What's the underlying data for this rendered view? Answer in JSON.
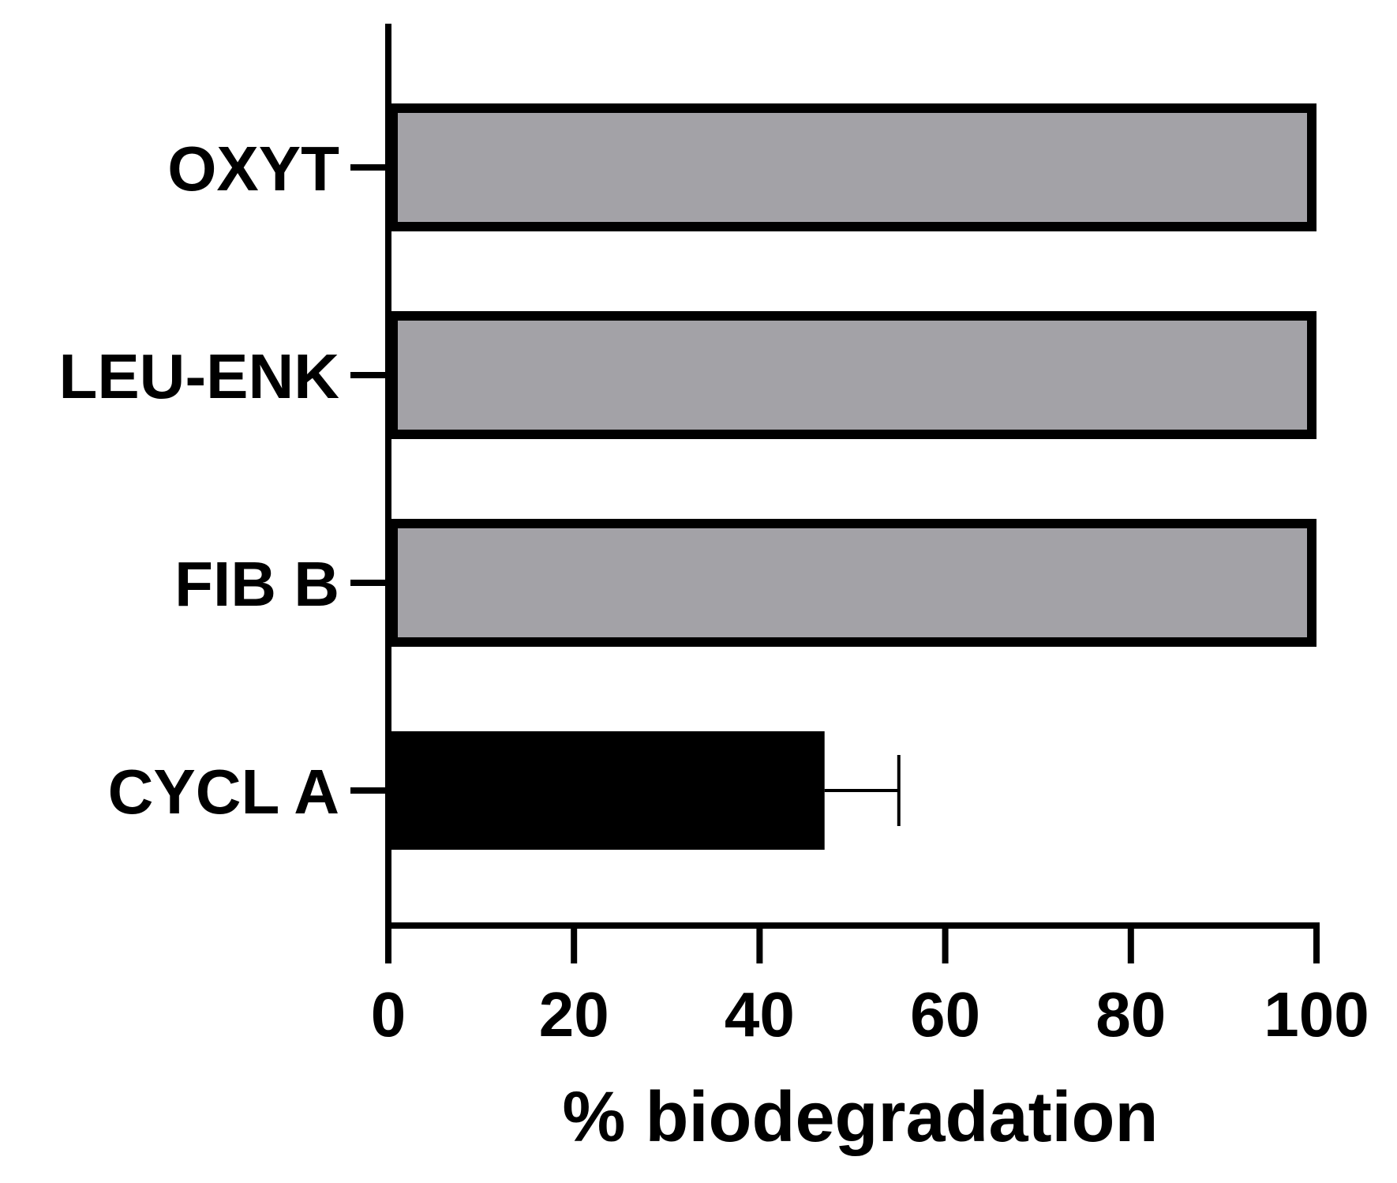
{
  "chart_data": {
    "type": "bar",
    "orientation": "horizontal",
    "categories": [
      "OXYT",
      "LEU-ENK",
      "FIB B",
      "CYCL A"
    ],
    "values": [
      100,
      100,
      100,
      47
    ],
    "errors": [
      null,
      null,
      null,
      8
    ],
    "bar_colors": [
      "#a3a2a7",
      "#a3a2a7",
      "#a3a2a7",
      "#000000"
    ],
    "xlabel": "% biodegradation",
    "ylabel": "",
    "title": "",
    "xlim": [
      0,
      100
    ],
    "xticks": [
      0,
      20,
      40,
      60,
      80,
      100
    ],
    "xtick_labels": [
      "0",
      "20",
      "40",
      "60",
      "80",
      "100"
    ],
    "grid": false,
    "legend": "none"
  }
}
